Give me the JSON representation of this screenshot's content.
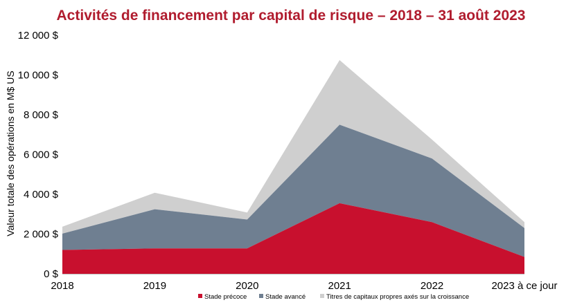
{
  "chart_data": {
    "type": "area",
    "stacked": true,
    "title": "Activités de financement par capital de risque – 2018 – 31 août 2023",
    "ylabel": "Valeur totale des opérations en M$ US",
    "xlabel": "",
    "categories": [
      "2018",
      "2019",
      "2020",
      "2021",
      "2022",
      "2023 à ce jour"
    ],
    "ylim": [
      0,
      12000
    ],
    "yticks": [
      0,
      2000,
      4000,
      6000,
      8000,
      10000,
      12000
    ],
    "ytick_labels": [
      "0 $",
      "2 000 $",
      "4 000 $",
      "6 000 $",
      "8 000 $",
      "10 000 $",
      "12 000 $"
    ],
    "series": [
      {
        "name": "Stade précoce",
        "values": [
          1200,
          1280,
          1280,
          3550,
          2600,
          850
        ]
      },
      {
        "name": "Stade avancé",
        "values": [
          820,
          1970,
          1450,
          3950,
          3200,
          1450
        ]
      },
      {
        "name": "Titres de capitaux propres axés sur la croissance",
        "values": [
          350,
          830,
          350,
          3250,
          950,
          300
        ]
      }
    ],
    "legend_position": "bottom",
    "grid": false
  },
  "colors": {
    "title": "#b01c2e",
    "series": [
      "#c8102e",
      "#6f7f91",
      "#cfcfcf"
    ]
  }
}
